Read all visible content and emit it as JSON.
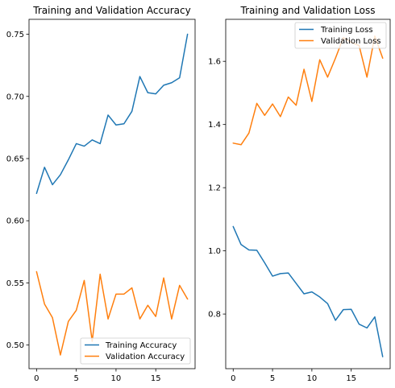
{
  "chart_data": [
    {
      "type": "line",
      "title": "Training and Validation Accuracy",
      "x": [
        0,
        1,
        2,
        3,
        4,
        5,
        6,
        7,
        8,
        9,
        10,
        11,
        12,
        13,
        14,
        15,
        16,
        17,
        18,
        19
      ],
      "xlim": [
        -0.95,
        19.95
      ],
      "ylim": [
        0.481,
        0.762
      ],
      "xticks": [
        0,
        5,
        10,
        15
      ],
      "yticks": [
        0.5,
        0.55,
        0.6,
        0.65,
        0.7,
        0.75
      ],
      "xtick_labels": [
        "0",
        "5",
        "10",
        "15"
      ],
      "ytick_labels": [
        "0.50",
        "0.55",
        "0.60",
        "0.65",
        "0.70",
        "0.75"
      ],
      "legend": "lower-right",
      "grid": false,
      "series": [
        {
          "name": "Training Accuracy",
          "color": "#1f77b4",
          "values": [
            0.622,
            0.643,
            0.629,
            0.637,
            0.649,
            0.662,
            0.66,
            0.665,
            0.662,
            0.685,
            0.677,
            0.678,
            0.688,
            0.716,
            0.703,
            0.702,
            0.709,
            0.711,
            0.715,
            0.75
          ]
        },
        {
          "name": "Validation Accuracy",
          "color": "#ff7f0e",
          "values": [
            0.559,
            0.533,
            0.522,
            0.492,
            0.519,
            0.528,
            0.552,
            0.503,
            0.557,
            0.521,
            0.541,
            0.541,
            0.546,
            0.521,
            0.532,
            0.523,
            0.554,
            0.521,
            0.548,
            0.537
          ]
        }
      ]
    },
    {
      "type": "line",
      "title": "Training and Validation Loss",
      "x": [
        0,
        1,
        2,
        3,
        4,
        5,
        6,
        7,
        8,
        9,
        10,
        11,
        12,
        13,
        14,
        15,
        16,
        17,
        18,
        19
      ],
      "xlim": [
        -0.95,
        19.95
      ],
      "ylim": [
        0.627,
        1.733
      ],
      "xticks": [
        0,
        5,
        10,
        15
      ],
      "yticks": [
        0.8,
        1.0,
        1.2,
        1.4,
        1.6
      ],
      "xtick_labels": [
        "0",
        "5",
        "10",
        "15"
      ],
      "ytick_labels": [
        "0.8",
        "1.0",
        "1.2",
        "1.4",
        "1.6"
      ],
      "legend": "upper-right",
      "grid": false,
      "series": [
        {
          "name": "Training Loss",
          "color": "#1f77b4",
          "values": [
            1.077,
            1.02,
            1.003,
            1.002,
            0.962,
            0.92,
            0.928,
            0.93,
            0.897,
            0.864,
            0.87,
            0.854,
            0.833,
            0.78,
            0.814,
            0.815,
            0.768,
            0.756,
            0.791,
            0.665
          ]
        },
        {
          "name": "Validation Loss",
          "color": "#ff7f0e",
          "values": [
            1.341,
            1.336,
            1.373,
            1.467,
            1.429,
            1.465,
            1.425,
            1.487,
            1.461,
            1.575,
            1.473,
            1.605,
            1.55,
            1.61,
            1.675,
            1.66,
            1.65,
            1.55,
            1.68,
            1.61
          ]
        }
      ]
    }
  ]
}
